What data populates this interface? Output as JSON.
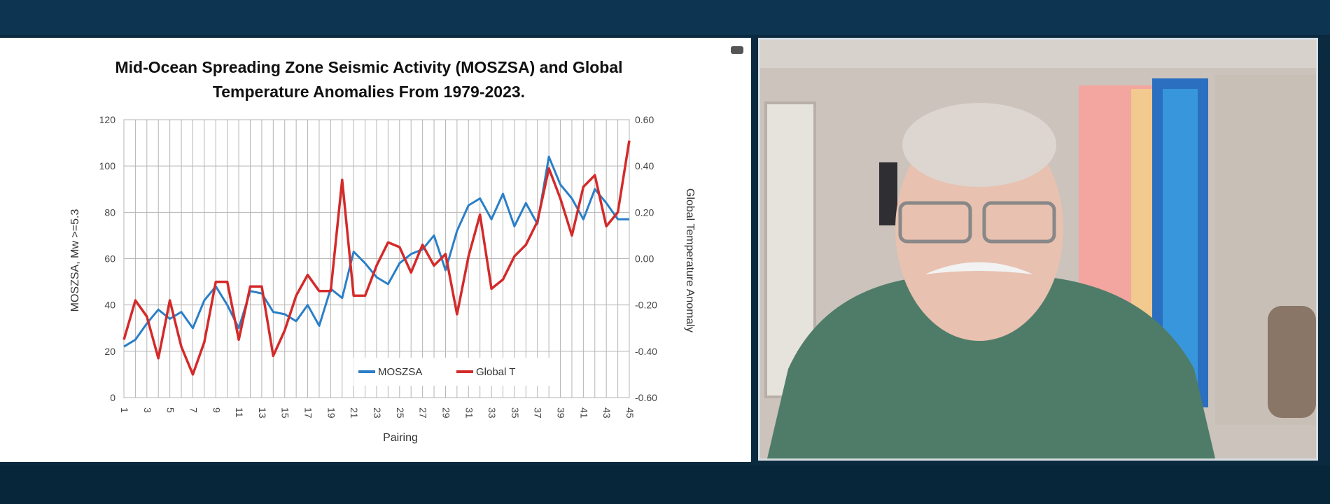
{
  "slide": {
    "title_line1": "Mid-Ocean Spreading Zone Seismic Activity (MOSZSA) and Global",
    "title_line2": "Temperature Anomalies From 1979-2023."
  },
  "video": {
    "icon": "participant-video-feed"
  },
  "chart_data": {
    "type": "line",
    "title": "Mid-Ocean Spreading Zone Seismic Activity (MOSZSA) and Global Temperature Anomalies From 1979-2023.",
    "xlabel": "Pairing",
    "ylabel": "MOSZSA, Mw >=5.3",
    "y2label": "Global Temperature Anomaly",
    "x": [
      1,
      2,
      3,
      4,
      5,
      6,
      7,
      8,
      9,
      10,
      11,
      12,
      13,
      14,
      15,
      16,
      17,
      18,
      19,
      20,
      21,
      22,
      23,
      24,
      25,
      26,
      27,
      28,
      29,
      30,
      31,
      32,
      33,
      34,
      35,
      36,
      37,
      38,
      39,
      40,
      41,
      42,
      43,
      44,
      45
    ],
    "x_tick_labels": [
      "1",
      "3",
      "5",
      "7",
      "9",
      "11",
      "13",
      "15",
      "17",
      "19",
      "21",
      "23",
      "25",
      "27",
      "29",
      "31",
      "33",
      "35",
      "37",
      "39",
      "41",
      "43",
      "45"
    ],
    "ylim": [
      0,
      120
    ],
    "y_ticks": [
      "0",
      "20",
      "40",
      "60",
      "80",
      "100",
      "120"
    ],
    "y2lim": [
      -0.6,
      0.6
    ],
    "y2_ticks": [
      "-0.60",
      "-0.40",
      "-0.20",
      "0.00",
      "0.20",
      "0.40",
      "0.60"
    ],
    "grid": true,
    "legend_position": "bottom-center",
    "series": [
      {
        "name": "MOSZSA",
        "axis": "left",
        "color": "#2a7fc7",
        "values": [
          22,
          25,
          32,
          38,
          34,
          37,
          30,
          42,
          48,
          40,
          30,
          46,
          45,
          37,
          36,
          33,
          40,
          31,
          47,
          43,
          63,
          58,
          52,
          49,
          58,
          62,
          64,
          70,
          55,
          72,
          83,
          86,
          77,
          88,
          74,
          84,
          75,
          104,
          92,
          86,
          77,
          90,
          84,
          77,
          77
        ]
      },
      {
        "name": "Global T",
        "axis": "right",
        "color": "#d42a2a",
        "values": [
          -0.35,
          -0.18,
          -0.25,
          -0.43,
          -0.18,
          -0.38,
          -0.5,
          -0.36,
          -0.1,
          -0.1,
          -0.35,
          -0.12,
          -0.12,
          -0.42,
          -0.31,
          -0.16,
          -0.07,
          -0.14,
          -0.14,
          0.34,
          -0.16,
          -0.16,
          -0.03,
          0.07,
          0.05,
          -0.06,
          0.06,
          -0.03,
          0.02,
          -0.24,
          0.01,
          0.19,
          -0.13,
          -0.09,
          0.01,
          0.06,
          0.16,
          0.39,
          0.26,
          0.1,
          0.31,
          0.36,
          0.14,
          0.2,
          0.51
        ]
      }
    ]
  }
}
